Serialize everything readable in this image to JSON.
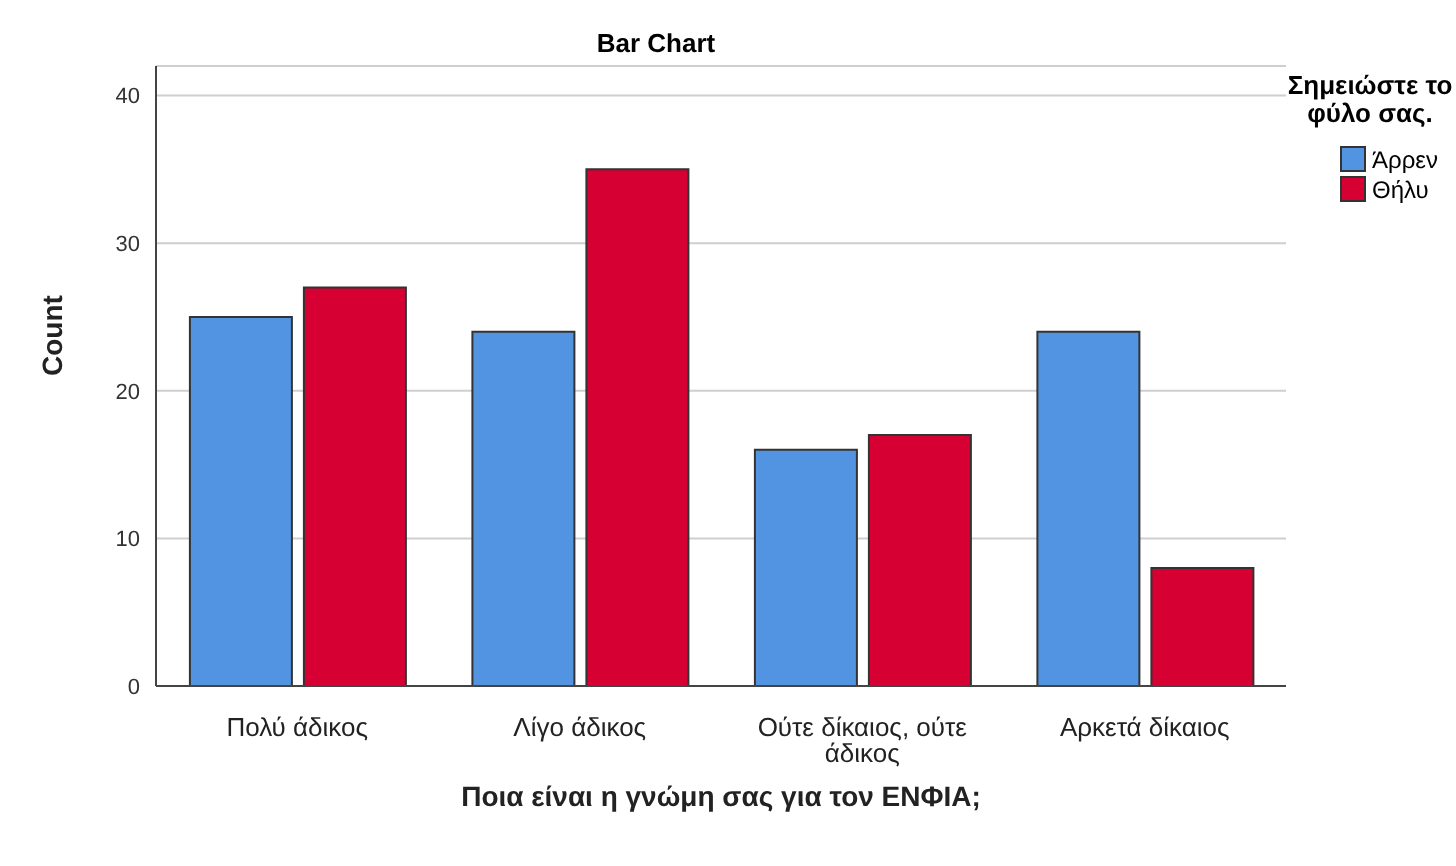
{
  "chart_data": {
    "type": "bar",
    "title": "Bar Chart",
    "xlabel": "Ποια είναι η γνώμη σας για τον ΕΝΦΙΑ;",
    "ylabel": "Count",
    "legend_title": "Σημειώστε το φύλο σας.",
    "categories": [
      "Πολύ άδικος",
      "Λίγο άδικος",
      "Ούτε δίκαιος, ούτε άδικος",
      "Αρκετά δίκαιος"
    ],
    "series": [
      {
        "name": "Άρρεν",
        "color": "#5294e2",
        "values": [
          25,
          24,
          16,
          24
        ]
      },
      {
        "name": "Θήλυ",
        "color": "#d60032",
        "values": [
          27,
          35,
          17,
          8
        ]
      }
    ],
    "ylim": [
      0,
      42
    ],
    "yticks": [
      0,
      10,
      20,
      30,
      40
    ],
    "grid": "y",
    "legend": "right"
  }
}
